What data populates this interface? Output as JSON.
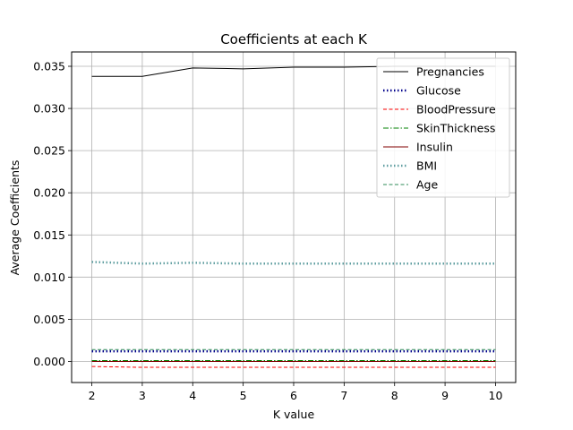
{
  "chart_data": {
    "type": "line",
    "title": "Coefficients at each K",
    "xlabel": "K value",
    "ylabel": "Average Coefficients",
    "x": [
      2,
      3,
      4,
      5,
      6,
      7,
      8,
      9,
      10
    ],
    "xlim": [
      1.6,
      10.4
    ],
    "ylim": [
      -0.0025,
      0.0367
    ],
    "xticks": [
      2,
      3,
      4,
      5,
      6,
      7,
      8,
      9,
      10
    ],
    "yticks": [
      0.0,
      0.005,
      0.01,
      0.015,
      0.02,
      0.025,
      0.03,
      0.035
    ],
    "ytick_labels": [
      "0.000",
      "0.005",
      "0.010",
      "0.015",
      "0.020",
      "0.025",
      "0.030",
      "0.035"
    ],
    "grid": true,
    "legend_position": "top-right",
    "series": [
      {
        "name": "Pregnancies",
        "color": "#000000",
        "style": "solid",
        "width": 1,
        "values": [
          0.0338,
          0.0338,
          0.0348,
          0.0347,
          0.0349,
          0.0349,
          0.035,
          0.035,
          0.035
        ]
      },
      {
        "name": "Glucose",
        "color": "#00008b",
        "style": "dotted",
        "width": 2.5,
        "values": [
          0.0012,
          0.0012,
          0.0012,
          0.0012,
          0.0012,
          0.0012,
          0.0012,
          0.0012,
          0.0012
        ]
      },
      {
        "name": "BloodPressure",
        "color": "#ff0000",
        "style": "dashed",
        "width": 1,
        "values": [
          -0.0006,
          -0.0007,
          -0.0007,
          -0.0007,
          -0.0007,
          -0.0007,
          -0.0007,
          -0.0007,
          -0.0007
        ]
      },
      {
        "name": "SkinThickness",
        "color": "#008000",
        "style": "dashdot",
        "width": 1,
        "values": [
          0.0001,
          0.0001,
          0.0001,
          0.0001,
          0.0001,
          0.0001,
          0.0001,
          0.0001,
          0.0001
        ]
      },
      {
        "name": "Insulin",
        "color": "#800000",
        "style": "solid",
        "width": 1,
        "values": [
          0.0,
          0.0,
          0.0,
          0.0,
          0.0,
          0.0,
          0.0,
          0.0,
          0.0
        ]
      },
      {
        "name": "BMI",
        "color": "#5f9ea0",
        "style": "dotted",
        "width": 2.5,
        "values": [
          0.0118,
          0.0116,
          0.0117,
          0.0116,
          0.0116,
          0.0116,
          0.0116,
          0.0116,
          0.0116
        ]
      },
      {
        "name": "Age",
        "color": "#2e8b57",
        "style": "dashed",
        "width": 1,
        "values": [
          0.0014,
          0.0014,
          0.0014,
          0.0014,
          0.0014,
          0.0014,
          0.0014,
          0.0014,
          0.0014
        ]
      }
    ]
  }
}
